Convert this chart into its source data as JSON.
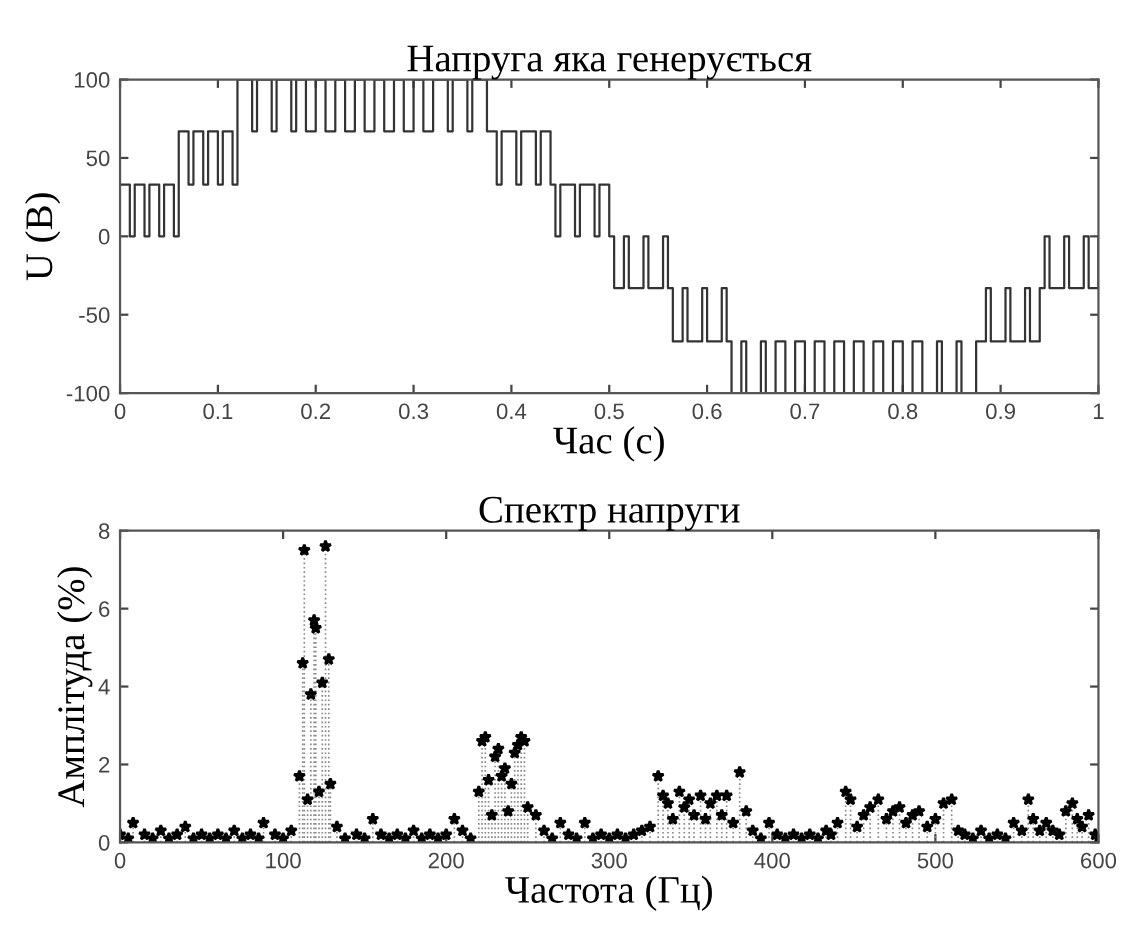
{
  "chart_data": [
    {
      "type": "step",
      "title": "Напруга яка генерується",
      "xlabel": "Час (с)",
      "ylabel": "U (В)",
      "xlim": [
        0,
        1
      ],
      "ylim": [
        -100,
        100
      ],
      "xticks": [
        0,
        0.1,
        0.2,
        0.3,
        0.4,
        0.5,
        0.6,
        0.7,
        0.8,
        0.9,
        1
      ],
      "yticks": [
        -100,
        -50,
        0,
        50,
        100
      ],
      "grid": false,
      "legend": false,
      "marker": "none",
      "line_style": "solid",
      "series": [
        {
          "color": "#333333",
          "x": [
            0,
            0.01,
            0.015,
            0.025,
            0.03,
            0.04,
            0.045,
            0.055,
            0.06,
            0.07,
            0.075,
            0.085,
            0.09,
            0.1,
            0.105,
            0.115,
            0.12,
            0.135,
            0.14,
            0.155,
            0.16,
            0.175,
            0.18,
            0.19,
            0.2,
            0.21,
            0.22,
            0.23,
            0.24,
            0.25,
            0.26,
            0.27,
            0.28,
            0.29,
            0.3,
            0.31,
            0.32,
            0.335,
            0.34,
            0.355,
            0.36,
            0.375,
            0.385,
            0.39,
            0.405,
            0.41,
            0.425,
            0.43,
            0.44,
            0.445,
            0.45,
            0.465,
            0.47,
            0.485,
            0.49,
            0.5,
            0.505,
            0.515,
            0.52,
            0.535,
            0.54,
            0.555,
            0.56,
            0.565,
            0.575,
            0.58,
            0.595,
            0.6,
            0.615,
            0.62,
            0.625,
            0.635,
            0.64,
            0.655,
            0.66,
            0.67,
            0.68,
            0.69,
            0.7,
            0.71,
            0.72,
            0.73,
            0.74,
            0.75,
            0.76,
            0.77,
            0.78,
            0.79,
            0.8,
            0.81,
            0.82,
            0.835,
            0.84,
            0.855,
            0.86,
            0.875,
            0.885,
            0.89,
            0.905,
            0.91,
            0.925,
            0.93,
            0.94,
            0.945,
            0.95,
            0.965,
            0.97,
            0.985,
            0.99,
            1
          ],
          "values": [
            33,
            0,
            33,
            0,
            33,
            0,
            33,
            0,
            67,
            33,
            67,
            33,
            67,
            33,
            67,
            33,
            100,
            67,
            100,
            67,
            100,
            67,
            100,
            67,
            100,
            67,
            100,
            67,
            100,
            67,
            100,
            67,
            100,
            67,
            100,
            67,
            100,
            67,
            100,
            67,
            100,
            67,
            33,
            67,
            33,
            67,
            33,
            67,
            33,
            0,
            33,
            0,
            33,
            0,
            33,
            0,
            -33,
            0,
            -33,
            0,
            -33,
            0,
            -33,
            -67,
            -33,
            -67,
            -33,
            -67,
            -33,
            -67,
            -100,
            -67,
            -100,
            -67,
            -100,
            -67,
            -100,
            -67,
            -100,
            -67,
            -100,
            -67,
            -100,
            -67,
            -100,
            -67,
            -100,
            -67,
            -100,
            -67,
            -100,
            -67,
            -100,
            -67,
            -100,
            -67,
            -33,
            -67,
            -33,
            -67,
            -33,
            -67,
            -33,
            0,
            -33,
            0,
            -33,
            0,
            -33,
            0
          ]
        }
      ]
    },
    {
      "type": "lollipop",
      "title": "Спектр напруги",
      "xlabel": "Частота (Гц)",
      "ylabel": "Амплітуда (%)",
      "xlim": [
        0,
        600
      ],
      "ylim": [
        0,
        8
      ],
      "xticks": [
        0,
        100,
        200,
        300,
        400,
        500,
        600
      ],
      "yticks": [
        0,
        2,
        4,
        6,
        8
      ],
      "grid": false,
      "legend": false,
      "marker": "star",
      "line_style": "dotted",
      "series": [
        {
          "color": "#000000",
          "x": [
            0,
            5,
            8,
            15,
            20,
            25,
            30,
            35,
            40,
            45,
            50,
            55,
            60,
            65,
            70,
            75,
            80,
            85,
            88,
            95,
            100,
            105,
            110,
            112,
            113,
            115,
            117,
            119,
            120,
            122,
            124,
            126,
            128,
            129,
            133,
            138,
            145,
            150,
            155,
            160,
            165,
            170,
            175,
            180,
            185,
            190,
            195,
            200,
            205,
            210,
            215,
            220,
            222,
            224,
            226,
            228,
            230,
            232,
            234,
            236,
            238,
            240,
            242,
            244,
            246,
            248,
            250,
            255,
            260,
            265,
            270,
            275,
            280,
            285,
            290,
            295,
            300,
            305,
            310,
            315,
            320,
            325,
            330,
            333,
            336,
            339,
            343,
            346,
            349,
            352,
            356,
            359,
            362,
            366,
            369,
            372,
            376,
            380,
            384,
            388,
            393,
            398,
            403,
            408,
            413,
            418,
            423,
            428,
            433,
            436,
            440,
            445,
            448,
            452,
            456,
            460,
            465,
            470,
            474,
            478,
            482,
            486,
            490,
            495,
            500,
            505,
            510,
            514,
            518,
            523,
            528,
            533,
            538,
            543,
            548,
            553,
            557,
            560,
            564,
            568,
            572,
            576,
            580,
            584,
            587,
            590,
            594,
            598,
            600
          ],
          "values": [
            0.2,
            0.1,
            0.5,
            0.2,
            0.1,
            0.3,
            0.1,
            0.2,
            0.4,
            0.1,
            0.2,
            0.1,
            0.2,
            0.1,
            0.3,
            0.1,
            0.2,
            0.1,
            0.5,
            0.2,
            0.1,
            0.3,
            1.7,
            4.6,
            7.5,
            1.1,
            3.8,
            5.7,
            5.5,
            1.3,
            4.1,
            7.6,
            4.7,
            1.5,
            0.4,
            0.1,
            0.2,
            0.1,
            0.6,
            0.2,
            0.1,
            0.2,
            0.1,
            0.3,
            0.1,
            0.2,
            0.1,
            0.2,
            0.6,
            0.3,
            0.1,
            1.3,
            2.6,
            2.7,
            1.6,
            0.7,
            2.2,
            2.4,
            1.7,
            1.9,
            0.8,
            1.5,
            2.3,
            2.5,
            2.7,
            2.6,
            0.9,
            0.7,
            0.3,
            0.1,
            0.5,
            0.2,
            0.1,
            0.5,
            0.1,
            0.2,
            0.1,
            0.2,
            0.1,
            0.2,
            0.3,
            0.4,
            1.7,
            1.2,
            1.0,
            0.6,
            1.3,
            0.9,
            1.1,
            0.7,
            1.2,
            0.6,
            1.0,
            1.2,
            0.7,
            1.2,
            0.5,
            1.8,
            0.8,
            0.3,
            0.1,
            0.5,
            0.2,
            0.1,
            0.2,
            0.1,
            0.2,
            0.1,
            0.3,
            0.2,
            0.5,
            1.3,
            1.1,
            0.4,
            0.7,
            0.9,
            1.1,
            0.6,
            0.8,
            0.9,
            0.5,
            0.7,
            0.8,
            0.4,
            0.6,
            1.0,
            1.1,
            0.3,
            0.2,
            0.1,
            0.3,
            0.1,
            0.2,
            0.1,
            0.5,
            0.3,
            1.1,
            0.6,
            0.3,
            0.5,
            0.3,
            0.2,
            0.8,
            1.0,
            0.6,
            0.4,
            0.7,
            0.2,
            0.1
          ]
        }
      ]
    }
  ]
}
